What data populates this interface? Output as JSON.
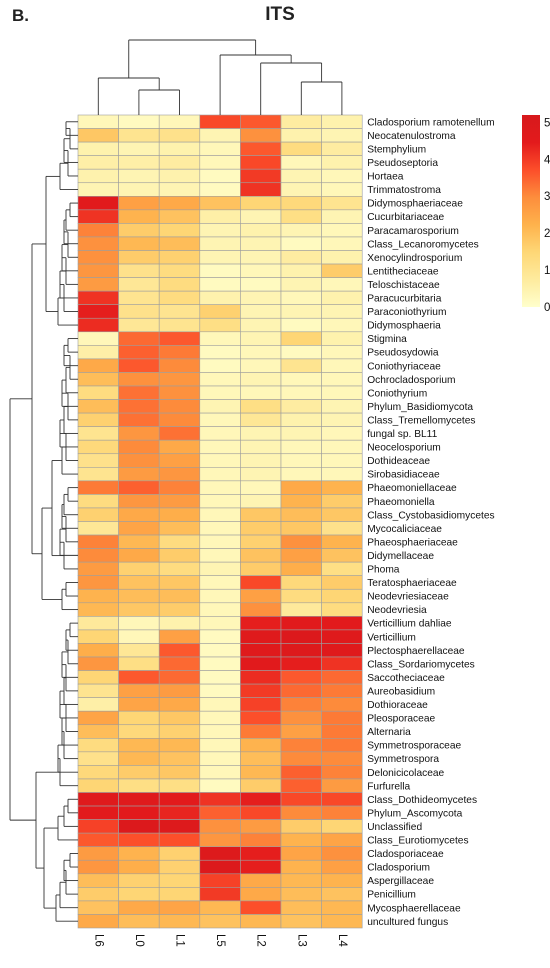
{
  "panel_label": "B.",
  "colors": {
    "scale": [
      "#FFFFCC",
      "#FEEB9E",
      "#FED776",
      "#FEB24C",
      "#FD8D3C",
      "#FC4E2A",
      "#E31A1C",
      "#D7191C"
    ],
    "cell_border": "#9e9e9e",
    "dendrogram": "#333333"
  },
  "chart_data": {
    "type": "heatmap",
    "title": "ITS",
    "columns": [
      "L6",
      "L0",
      "L1",
      "L5",
      "L2",
      "L3",
      "L4"
    ],
    "rows": [
      "Cladosporium ramotenellum",
      "Neocatenulostroma",
      "Stemphylium",
      "Pseudoseptoria",
      "Hortaea",
      "Trimmatostroma",
      "Didymosphaeriaceae",
      "Cucurbitariaceae",
      "Paracamarosporium",
      "Class_Lecanoromycetes",
      "Xenocylindrosporium",
      "Lentitheciaceae",
      "Teloschistaceae",
      "Paracucurbitaria",
      "Paraconiothyrium",
      "Didymosphaeria",
      "Stigmina",
      "Pseudosydowia",
      "Coniothyriaceae",
      "Ochrocladosporium",
      "Coniothyrium",
      "Phylum_Basidiomycota",
      "Class_Tremellomycetes",
      "fungal sp. BL11",
      "Neocelosporium",
      "Dothideaceae",
      "Sirobasidiaceae",
      "Phaeomoniellaceae",
      "Phaeomoniella",
      "Class_Cystobasidiomycetes",
      "Mycocaliciaceae",
      "Phaeosphaeriaceae",
      "Didymellaceae",
      "Phoma",
      "Teratosphaeriaceae",
      "Neodevriesiaceae",
      "Neodevriesia",
      "Verticillium dahliae",
      "Verticillium",
      "Plectosphaerellaceae",
      "Class_Sordariomycetes",
      "Saccotheciaceae",
      "Aureobasidium",
      "Dothioraceae",
      "Pleosporaceae",
      "Alternaria",
      "Symmetrosporaceae",
      "Symmetrospora",
      "Delonicicolaceae",
      "Furfurella",
      "Class_Dothideomycetes",
      "Phylum_Ascomycota",
      "Unclassified",
      "Class_Eurotiomycetes",
      "Cladosporiaceae",
      "Cladosporium",
      "Aspergillaceae",
      "Penicillium",
      "Mycosphaerellaceae",
      "uncultured fungus"
    ],
    "values": [
      [
        0.3,
        0.2,
        0.3,
        3.8,
        3.6,
        0.7,
        0.5
      ],
      [
        1.8,
        1.0,
        1.1,
        0.4,
        2.9,
        0.5,
        0.4
      ],
      [
        0.5,
        0.4,
        0.5,
        0.3,
        3.6,
        1.3,
        0.7
      ],
      [
        0.6,
        0.6,
        0.7,
        0.3,
        3.8,
        0.3,
        0.5
      ],
      [
        0.5,
        0.4,
        0.5,
        0.2,
        4.0,
        0.4,
        0.3
      ],
      [
        0.4,
        0.4,
        0.4,
        0.2,
        4.1,
        0.4,
        0.3
      ],
      [
        4.6,
        2.6,
        2.4,
        1.9,
        1.5,
        1.4,
        1.0
      ],
      [
        4.1,
        2.2,
        1.9,
        0.6,
        0.4,
        1.2,
        0.4
      ],
      [
        3.1,
        1.7,
        1.5,
        0.4,
        0.5,
        0.4,
        0.3
      ],
      [
        2.9,
        2.1,
        2.0,
        0.4,
        0.4,
        0.2,
        0.3
      ],
      [
        2.9,
        1.7,
        1.6,
        0.4,
        0.4,
        0.7,
        0.5
      ],
      [
        2.8,
        1.1,
        1.3,
        0.2,
        0.3,
        0.5,
        1.7
      ],
      [
        2.7,
        0.9,
        1.3,
        0.2,
        0.2,
        0.4,
        0.3
      ],
      [
        4.1,
        1.0,
        1.3,
        0.5,
        0.4,
        0.3,
        0.5
      ],
      [
        4.4,
        1.1,
        1.0,
        1.6,
        0.4,
        0.4,
        0.4
      ],
      [
        4.2,
        0.9,
        1.0,
        1.2,
        0.4,
        0.2,
        0.3
      ],
      [
        0.3,
        3.4,
        3.6,
        0.3,
        0.4,
        1.5,
        0.5
      ],
      [
        0.6,
        3.5,
        3.2,
        0.2,
        0.3,
        0.2,
        0.3
      ],
      [
        2.4,
        3.6,
        3.0,
        0.2,
        0.3,
        1.0,
        0.3
      ],
      [
        2.0,
        2.9,
        2.8,
        0.3,
        0.4,
        0.3,
        0.3
      ],
      [
        1.3,
        3.3,
        2.9,
        0.3,
        0.3,
        0.3,
        0.3
      ],
      [
        2.0,
        3.3,
        3.0,
        0.4,
        1.2,
        0.7,
        0.4
      ],
      [
        1.6,
        3.3,
        3.0,
        0.3,
        0.9,
        0.5,
        0.4
      ],
      [
        1.0,
        2.8,
        3.3,
        0.3,
        0.4,
        0.4,
        0.3
      ],
      [
        1.4,
        3.0,
        2.4,
        0.3,
        0.4,
        0.3,
        0.3
      ],
      [
        1.1,
        2.9,
        2.6,
        0.3,
        0.4,
        0.3,
        0.3
      ],
      [
        1.0,
        2.7,
        2.8,
        0.3,
        0.4,
        0.3,
        0.3
      ],
      [
        3.2,
        3.5,
        3.1,
        0.3,
        0.3,
        2.4,
        2.2
      ],
      [
        1.3,
        2.8,
        2.7,
        0.3,
        0.4,
        2.2,
        1.7
      ],
      [
        1.6,
        2.4,
        2.3,
        0.3,
        1.8,
        2.0,
        1.8
      ],
      [
        0.9,
        2.5,
        2.0,
        0.3,
        1.7,
        1.8,
        1.1
      ],
      [
        3.1,
        2.1,
        1.3,
        0.3,
        1.6,
        2.9,
        2.2
      ],
      [
        3.0,
        2.4,
        1.7,
        0.3,
        1.9,
        2.6,
        1.9
      ],
      [
        2.7,
        1.6,
        1.3,
        0.4,
        1.7,
        2.3,
        1.2
      ],
      [
        2.8,
        1.9,
        1.8,
        0.3,
        3.8,
        1.4,
        1.7
      ],
      [
        2.2,
        2.0,
        2.0,
        0.3,
        2.6,
        1.3,
        1.5
      ],
      [
        2.1,
        1.8,
        1.7,
        0.3,
        2.9,
        0.8,
        1.3
      ],
      [
        0.8,
        0.3,
        0.5,
        0.3,
        4.4,
        4.6,
        4.5
      ],
      [
        1.5,
        0.3,
        2.6,
        0.2,
        4.7,
        4.9,
        4.7
      ],
      [
        2.3,
        0.9,
        3.6,
        0.2,
        4.7,
        4.8,
        4.7
      ],
      [
        2.8,
        1.2,
        3.4,
        0.2,
        4.6,
        4.4,
        4.1
      ],
      [
        1.5,
        3.6,
        3.4,
        0.2,
        4.2,
        3.6,
        3.4
      ],
      [
        1.0,
        2.6,
        2.7,
        0.2,
        4.0,
        3.4,
        3.2
      ],
      [
        0.6,
        2.5,
        2.4,
        0.3,
        3.9,
        3.1,
        3.0
      ],
      [
        2.5,
        1.5,
        1.8,
        0.3,
        3.7,
        2.9,
        3.2
      ],
      [
        2.0,
        1.4,
        1.6,
        0.3,
        3.2,
        2.6,
        3.2
      ],
      [
        1.3,
        2.1,
        2.1,
        0.3,
        2.2,
        3.1,
        3.2
      ],
      [
        1.1,
        2.1,
        1.9,
        0.3,
        2.0,
        3.0,
        3.0
      ],
      [
        1.4,
        1.7,
        1.8,
        0.3,
        2.1,
        3.5,
        3.1
      ],
      [
        1.5,
        1.2,
        1.2,
        0.2,
        1.7,
        3.5,
        2.7
      ],
      [
        4.7,
        4.7,
        4.5,
        4.1,
        4.4,
        3.8,
        3.8
      ],
      [
        4.5,
        4.5,
        4.3,
        3.5,
        3.8,
        3.0,
        3.1
      ],
      [
        3.9,
        4.9,
        4.8,
        2.9,
        2.7,
        1.7,
        1.5
      ],
      [
        3.6,
        3.7,
        3.7,
        2.8,
        3.1,
        2.2,
        2.5
      ],
      [
        2.7,
        2.2,
        1.6,
        4.8,
        4.4,
        2.5,
        2.9
      ],
      [
        2.8,
        2.3,
        1.6,
        4.9,
        4.4,
        2.2,
        2.6
      ],
      [
        2.0,
        1.6,
        1.5,
        3.9,
        2.4,
        2.1,
        2.2
      ],
      [
        1.7,
        1.5,
        1.5,
        4.0,
        2.4,
        2.0,
        1.9
      ],
      [
        1.9,
        2.4,
        2.5,
        2.1,
        3.7,
        2.0,
        2.1
      ],
      [
        2.4,
        2.0,
        2.1,
        1.9,
        2.1,
        1.9,
        2.1
      ]
    ],
    "colorbar": {
      "ticks": [
        0,
        1,
        2,
        3,
        4,
        5
      ],
      "range": [
        0,
        5.2
      ]
    }
  }
}
